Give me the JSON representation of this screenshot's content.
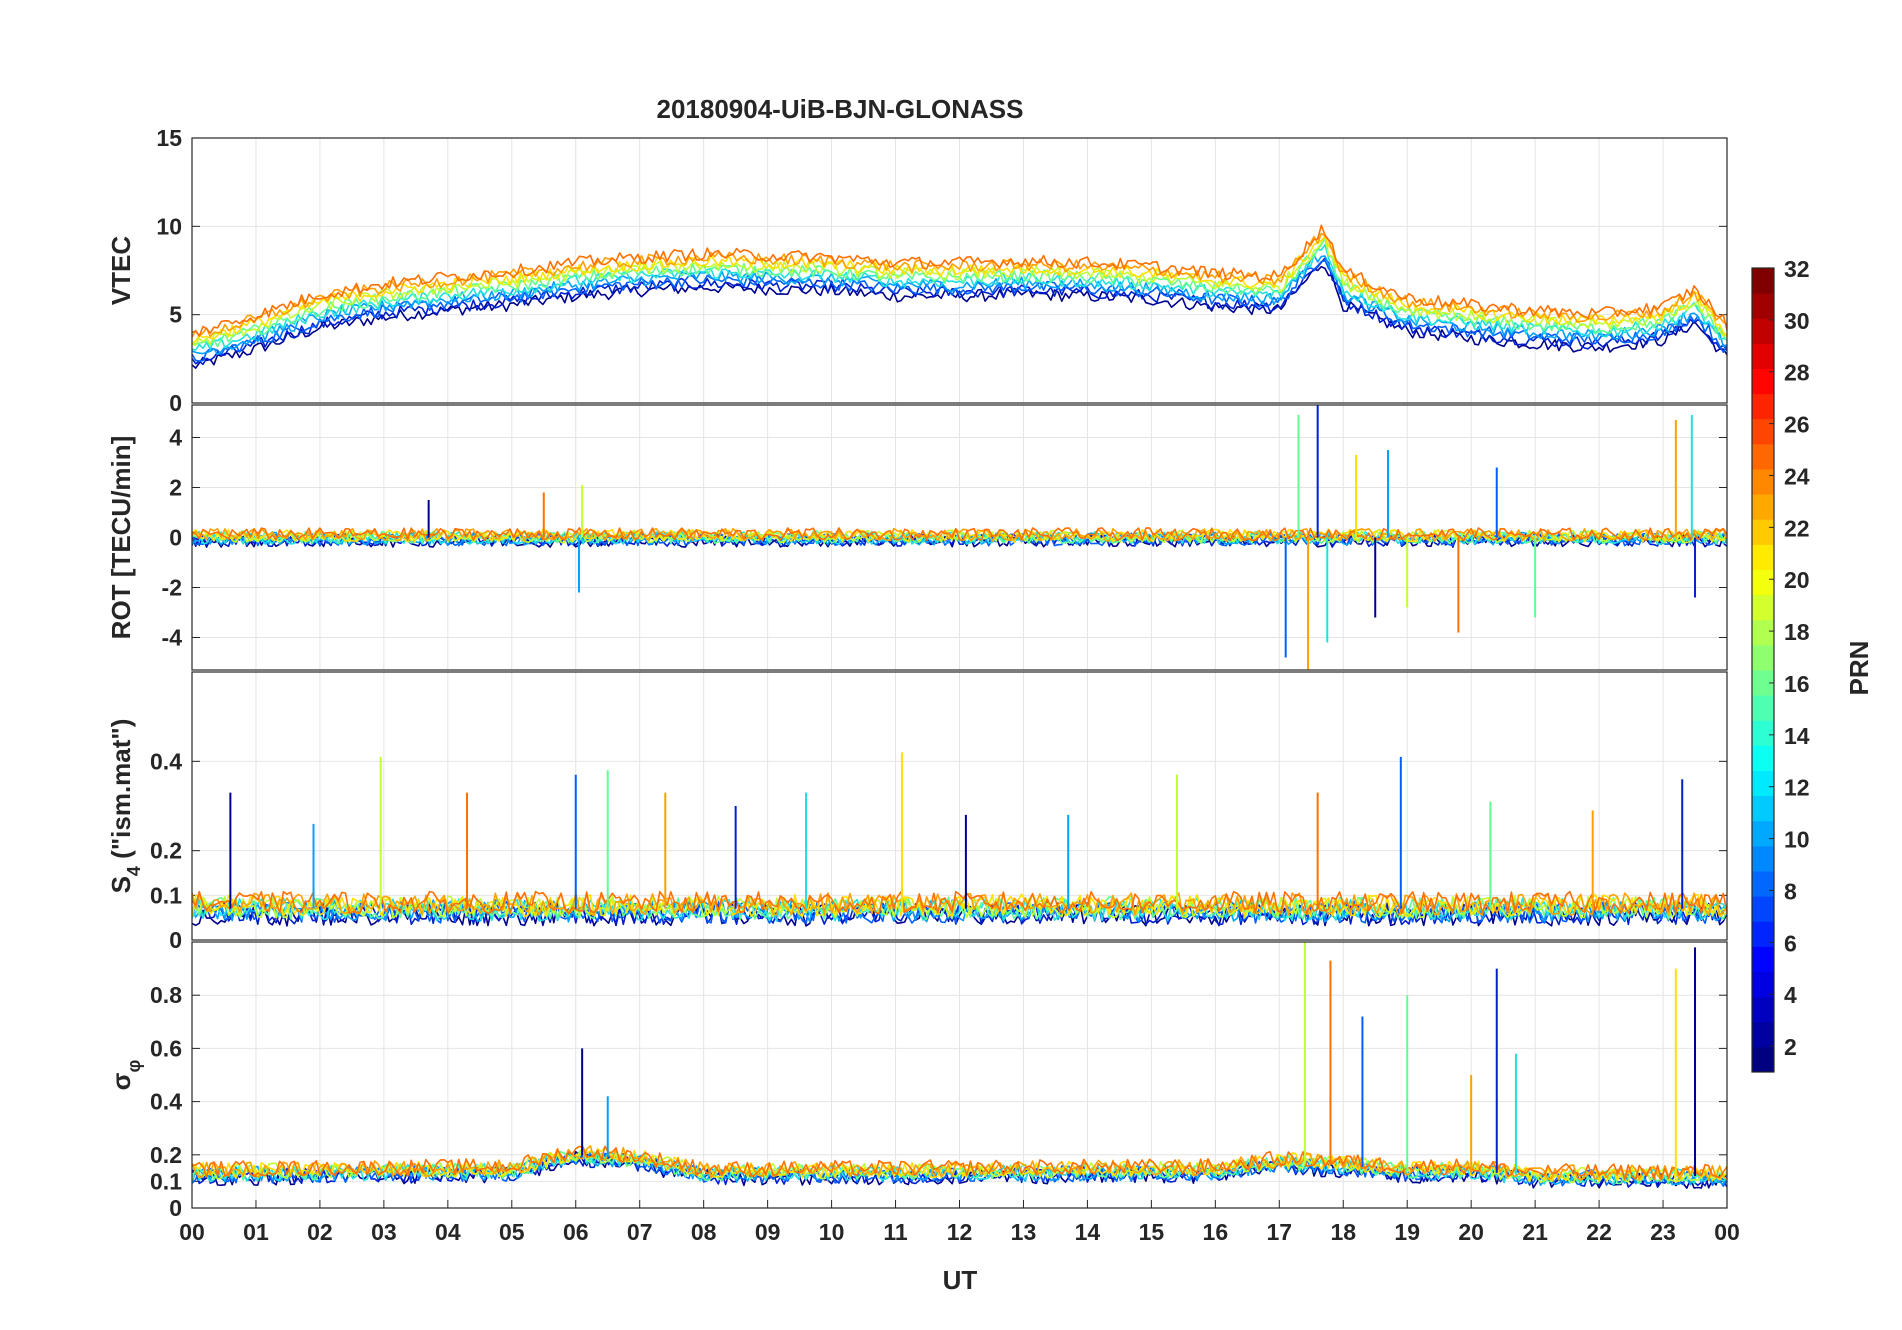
{
  "chart_data": {
    "type": "line",
    "title": "20180904-UiB-BJN-GLONASS",
    "xlabel": "UT",
    "x_ticks": [
      "00",
      "01",
      "02",
      "03",
      "04",
      "05",
      "06",
      "07",
      "08",
      "09",
      "10",
      "11",
      "12",
      "13",
      "14",
      "15",
      "16",
      "17",
      "18",
      "19",
      "20",
      "21",
      "22",
      "23",
      "00"
    ],
    "xlim_hours": [
      0,
      24
    ],
    "colorbar": {
      "label": "PRN",
      "range": [
        1,
        32
      ],
      "ticks": [
        "2",
        "4",
        "6",
        "8",
        "10",
        "12",
        "14",
        "16",
        "18",
        "20",
        "22",
        "24",
        "26",
        "28",
        "30",
        "32"
      ],
      "colormap": "jet"
    },
    "series_colors": [
      "#00008f",
      "#0020d0",
      "#0060ff",
      "#00a0ff",
      "#20e0e0",
      "#60ff90",
      "#c0ff30",
      "#ffe000",
      "#ffa000",
      "#ff7000"
    ],
    "panels": [
      {
        "name": "vtec",
        "ylabel": "VTEC",
        "ylim": [
          0,
          15
        ],
        "y_ticks": [
          0,
          5,
          10,
          15
        ],
        "baseline": {
          "hours": [
            0,
            1,
            2,
            3,
            4,
            5,
            6,
            7,
            8,
            9,
            10,
            11,
            12,
            13,
            14,
            15,
            16,
            17,
            17.7,
            18,
            19,
            20,
            21,
            22,
            23,
            23.5,
            24
          ],
          "values": [
            3,
            4,
            5.2,
            5.8,
            6.2,
            6.5,
            7,
            7.3,
            7.5,
            7.4,
            7.3,
            7,
            7,
            7.1,
            7,
            6.8,
            6.4,
            6.2,
            9,
            6.5,
            5,
            4.6,
            4.3,
            4.1,
            4.5,
            5.5,
            3.5
          ]
        },
        "noise": 0.35,
        "spikes": []
      },
      {
        "name": "rot",
        "ylabel": "ROT [TECU/min]",
        "ylim": [
          -5.3,
          5.3
        ],
        "y_ticks": [
          -4,
          -2,
          0,
          2,
          4
        ],
        "baseline": {
          "hours": [
            0,
            24
          ],
          "values": [
            0,
            0
          ]
        },
        "noise": 0.25,
        "spikes": [
          {
            "hour": 3.7,
            "value": 1.5
          },
          {
            "hour": 6.05,
            "value": -2.2
          },
          {
            "hour": 6.1,
            "value": 2.1
          },
          {
            "hour": 5.5,
            "value": 1.8
          },
          {
            "hour": 17.1,
            "value": -4.8
          },
          {
            "hour": 17.3,
            "value": 4.9
          },
          {
            "hour": 17.45,
            "value": -5.3
          },
          {
            "hour": 17.6,
            "value": 5.3
          },
          {
            "hour": 17.75,
            "value": -4.2
          },
          {
            "hour": 18.2,
            "value": 3.3
          },
          {
            "hour": 18.5,
            "value": -3.2
          },
          {
            "hour": 18.7,
            "value": 3.5
          },
          {
            "hour": 19.0,
            "value": -2.8
          },
          {
            "hour": 19.8,
            "value": -3.8
          },
          {
            "hour": 20.4,
            "value": 2.8
          },
          {
            "hour": 21.0,
            "value": -3.2
          },
          {
            "hour": 23.2,
            "value": 4.7
          },
          {
            "hour": 23.5,
            "value": -2.4
          },
          {
            "hour": 23.45,
            "value": 4.9
          }
        ]
      },
      {
        "name": "s4",
        "ylabel": "S4 (\"ism.mat\")",
        "ylabel_main": "S",
        "ylabel_sub": "4",
        "ylabel_tail": " (\"ism.mat\")",
        "ylim": [
          0,
          0.6
        ],
        "y_ticks": [
          0,
          0.1,
          0.2,
          0.4
        ],
        "baseline": {
          "hours": [
            0,
            24
          ],
          "values": [
            0.07,
            0.07
          ]
        },
        "noise": 0.025,
        "spikes": [
          {
            "hour": 0.6,
            "value": 0.33
          },
          {
            "hour": 1.9,
            "value": 0.26
          },
          {
            "hour": 2.95,
            "value": 0.41
          },
          {
            "hour": 4.3,
            "value": 0.33
          },
          {
            "hour": 6.0,
            "value": 0.37
          },
          {
            "hour": 6.5,
            "value": 0.38
          },
          {
            "hour": 7.4,
            "value": 0.33
          },
          {
            "hour": 8.5,
            "value": 0.3
          },
          {
            "hour": 9.6,
            "value": 0.33
          },
          {
            "hour": 11.1,
            "value": 0.42
          },
          {
            "hour": 12.1,
            "value": 0.28
          },
          {
            "hour": 13.7,
            "value": 0.28
          },
          {
            "hour": 15.4,
            "value": 0.37
          },
          {
            "hour": 17.6,
            "value": 0.33
          },
          {
            "hour": 18.9,
            "value": 0.41
          },
          {
            "hour": 20.3,
            "value": 0.31
          },
          {
            "hour": 21.9,
            "value": 0.29
          },
          {
            "hour": 23.3,
            "value": 0.36
          }
        ]
      },
      {
        "name": "sigma-phi",
        "ylabel": "σφ",
        "ylabel_main": "σ",
        "ylabel_sub": "φ",
        "ylim": [
          0,
          1
        ],
        "y_ticks": [
          0,
          0.1,
          0.2,
          0.4,
          0.6,
          0.8
        ],
        "baseline": {
          "hours": [
            0,
            5,
            6,
            7,
            8,
            16,
            17,
            18,
            19,
            20,
            21,
            22,
            23,
            24
          ],
          "values": [
            0.13,
            0.14,
            0.2,
            0.18,
            0.13,
            0.14,
            0.17,
            0.16,
            0.14,
            0.14,
            0.12,
            0.12,
            0.12,
            0.12
          ]
        },
        "noise": 0.03,
        "spikes": [
          {
            "hour": 6.1,
            "value": 0.6
          },
          {
            "hour": 6.5,
            "value": 0.42
          },
          {
            "hour": 17.4,
            "value": 1.0
          },
          {
            "hour": 17.8,
            "value": 0.93
          },
          {
            "hour": 18.3,
            "value": 0.72
          },
          {
            "hour": 19.0,
            "value": 0.8
          },
          {
            "hour": 20.0,
            "value": 0.5
          },
          {
            "hour": 20.4,
            "value": 0.9
          },
          {
            "hour": 20.7,
            "value": 0.58
          },
          {
            "hour": 23.2,
            "value": 0.9
          },
          {
            "hour": 23.5,
            "value": 0.98
          }
        ]
      }
    ]
  }
}
